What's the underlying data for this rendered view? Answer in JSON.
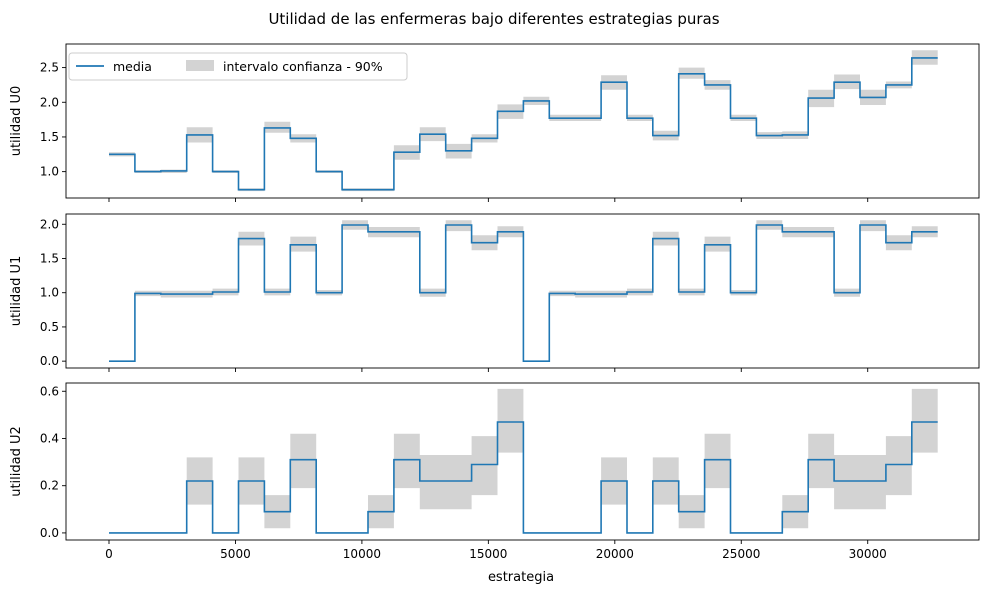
{
  "chart_data": {
    "type": "line",
    "title": "Utilidad de las enfermeras bajo diferentes estrategias puras",
    "xlabel": "estrategia",
    "xlim": [
      -1700,
      34400
    ],
    "xticks": [
      0,
      5000,
      10000,
      15000,
      20000,
      25000,
      30000
    ],
    "legend": {
      "placement": "top-left",
      "line_label": "media",
      "band_label": "intervalo confianza - 90%"
    },
    "colors": {
      "line": "#1f77b4",
      "band": "#d3d3d3"
    },
    "x": [
      0,
      1024,
      2048,
      3072,
      4096,
      5120,
      6144,
      7168,
      8192,
      9216,
      10240,
      11264,
      12288,
      13312,
      14336,
      15360,
      16384,
      17408,
      18432,
      19456,
      20480,
      21504,
      22528,
      23552,
      24576,
      25600,
      26624,
      27648,
      28672,
      29696,
      30720,
      31744,
      32768
    ],
    "panels": [
      {
        "ylabel": "utilidad U0",
        "ylim": [
          0.62,
          2.84
        ],
        "yticks": [
          "1.0",
          "1.5",
          "2.0",
          "2.5"
        ],
        "mean": [
          1.25,
          1.0,
          1.01,
          1.53,
          1.0,
          0.74,
          1.63,
          1.48,
          1.0,
          0.74,
          0.74,
          1.28,
          1.54,
          1.3,
          1.48,
          1.87,
          2.02,
          1.77,
          1.77,
          2.29,
          1.77,
          1.52,
          2.41,
          2.25,
          1.77,
          1.52,
          1.53,
          2.06,
          2.29,
          2.07,
          2.25,
          2.64,
          2.64
        ],
        "lower": [
          1.22,
          0.98,
          0.98,
          1.42,
          0.98,
          0.72,
          1.56,
          1.42,
          0.98,
          0.72,
          0.72,
          1.17,
          1.44,
          1.19,
          1.42,
          1.76,
          1.96,
          1.73,
          1.73,
          2.18,
          1.73,
          1.45,
          2.34,
          2.18,
          1.73,
          1.47,
          1.47,
          1.93,
          2.19,
          1.96,
          2.2,
          2.54,
          2.54
        ],
        "upper": [
          1.28,
          1.02,
          1.03,
          1.64,
          1.02,
          0.76,
          1.72,
          1.54,
          1.02,
          0.76,
          0.76,
          1.38,
          1.64,
          1.4,
          1.54,
          1.97,
          2.08,
          1.82,
          1.82,
          2.39,
          1.82,
          1.59,
          2.5,
          2.32,
          1.82,
          1.57,
          1.58,
          2.18,
          2.4,
          2.18,
          2.3,
          2.75,
          2.75
        ]
      },
      {
        "ylabel": "utilidad U1",
        "ylim": [
          -0.1,
          2.15
        ],
        "yticks": [
          "0.0",
          "0.5",
          "1.0",
          "1.5",
          "2.0"
        ],
        "mean": [
          0.0,
          0.99,
          0.98,
          0.98,
          1.01,
          1.79,
          1.01,
          1.7,
          1.0,
          1.99,
          1.89,
          1.89,
          1.0,
          1.99,
          1.73,
          1.89,
          0.0,
          0.99,
          0.98,
          0.98,
          1.01,
          1.79,
          1.01,
          1.7,
          1.0,
          1.99,
          1.89,
          1.89,
          1.0,
          1.99,
          1.73,
          1.89,
          1.89
        ],
        "lower": [
          0.0,
          0.95,
          0.93,
          0.93,
          0.96,
          1.69,
          0.96,
          1.6,
          0.96,
          1.92,
          1.81,
          1.81,
          0.94,
          1.9,
          1.62,
          1.81,
          0.0,
          0.95,
          0.93,
          0.93,
          0.96,
          1.69,
          0.96,
          1.6,
          0.96,
          1.92,
          1.81,
          1.81,
          0.94,
          1.9,
          1.62,
          1.81,
          1.81
        ],
        "upper": [
          0.0,
          1.03,
          1.03,
          1.03,
          1.06,
          1.89,
          1.06,
          1.82,
          1.04,
          2.06,
          1.96,
          1.96,
          1.06,
          2.06,
          1.84,
          1.97,
          0.0,
          1.03,
          1.03,
          1.03,
          1.06,
          1.89,
          1.06,
          1.82,
          1.04,
          2.06,
          1.96,
          1.96,
          1.06,
          2.06,
          1.84,
          1.97,
          1.97
        ]
      },
      {
        "ylabel": "utilidad U2",
        "ylim": [
          -0.03,
          0.635
        ],
        "yticks": [
          "0.0",
          "0.2",
          "0.4",
          "0.6"
        ],
        "mean": [
          0.0,
          0.0,
          0.0,
          0.22,
          0.0,
          0.22,
          0.09,
          0.31,
          0.0,
          0.0,
          0.09,
          0.31,
          0.22,
          0.22,
          0.29,
          0.47,
          0.0,
          0.0,
          0.0,
          0.22,
          0.0,
          0.22,
          0.09,
          0.31,
          0.0,
          0.0,
          0.09,
          0.31,
          0.22,
          0.22,
          0.29,
          0.47,
          0.47
        ],
        "lower": [
          0.0,
          0.0,
          0.0,
          0.12,
          0.0,
          0.12,
          0.02,
          0.19,
          0.0,
          0.0,
          0.02,
          0.19,
          0.1,
          0.1,
          0.16,
          0.34,
          0.0,
          0.0,
          0.0,
          0.12,
          0.0,
          0.12,
          0.02,
          0.19,
          0.0,
          0.0,
          0.02,
          0.19,
          0.1,
          0.1,
          0.16,
          0.34,
          0.34
        ],
        "upper": [
          0.0,
          0.0,
          0.0,
          0.32,
          0.0,
          0.32,
          0.16,
          0.42,
          0.0,
          0.0,
          0.16,
          0.42,
          0.33,
          0.33,
          0.41,
          0.61,
          0.0,
          0.0,
          0.0,
          0.32,
          0.0,
          0.32,
          0.16,
          0.42,
          0.0,
          0.0,
          0.16,
          0.42,
          0.33,
          0.33,
          0.41,
          0.61,
          0.61
        ]
      }
    ]
  }
}
